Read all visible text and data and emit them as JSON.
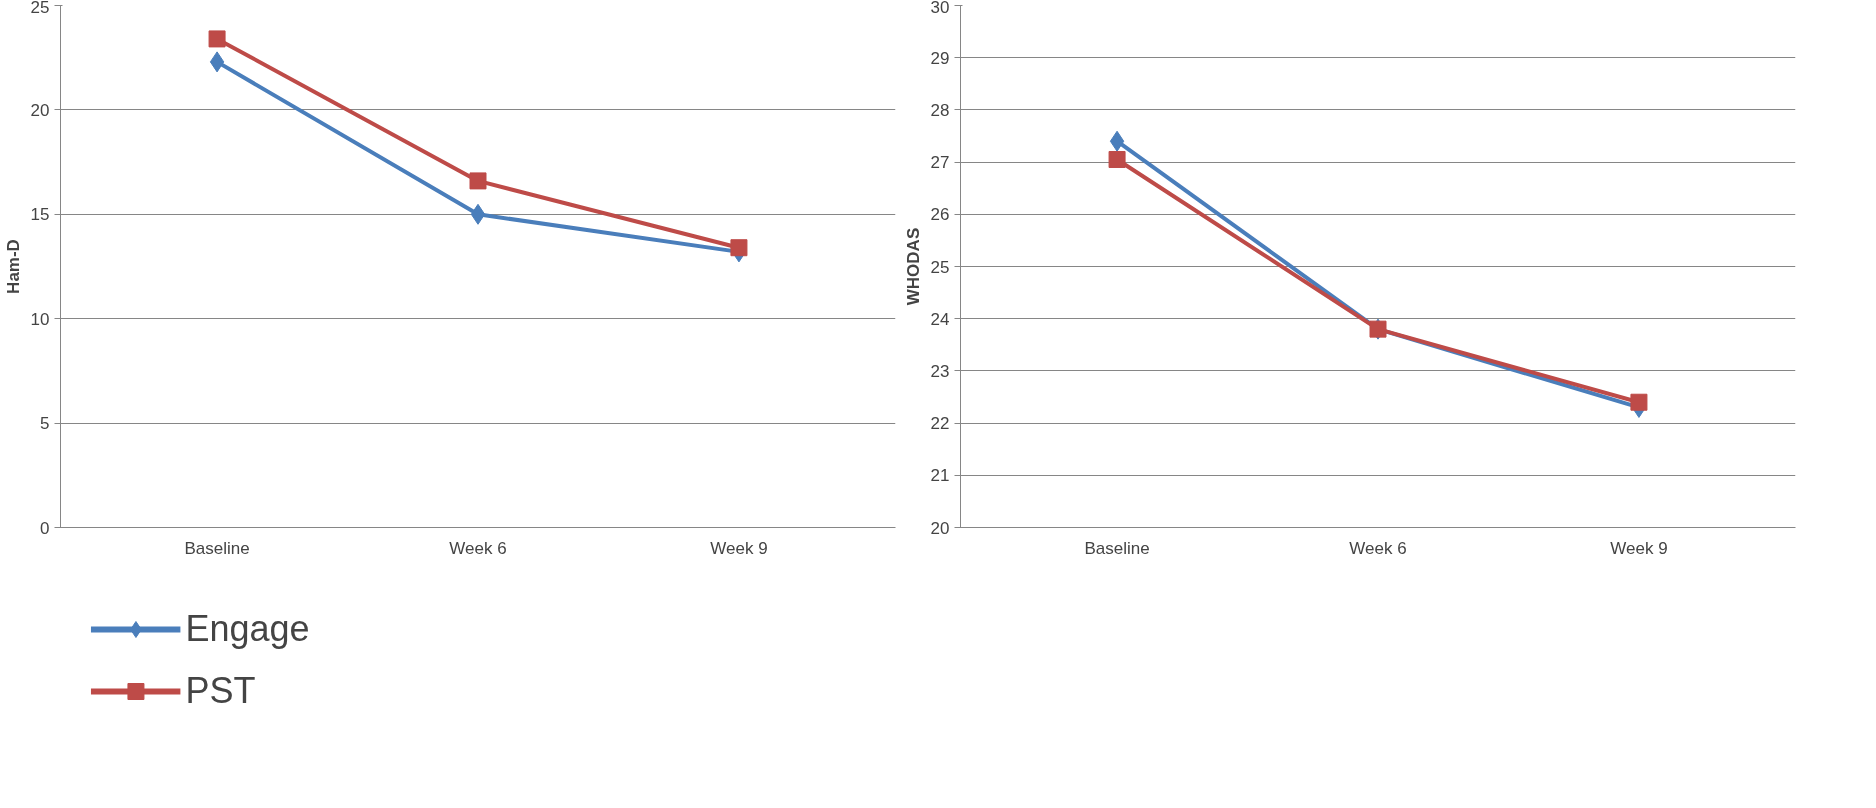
{
  "chart_data": [
    {
      "type": "line",
      "ylabel": "Ham-D",
      "categories": [
        "Baseline",
        "Week 6",
        "Week 9"
      ],
      "ylim": [
        0,
        25
      ],
      "yticks": [
        0,
        5,
        10,
        15,
        20,
        25
      ],
      "grid": "y",
      "legend": "bottom",
      "series": [
        {
          "name": "Engage",
          "color": "#4a7ebb",
          "marker": "diamond",
          "values": [
            22.3,
            15.0,
            13.2
          ]
        },
        {
          "name": "PST",
          "color": "#be4b48",
          "marker": "square",
          "values": [
            23.4,
            16.6,
            13.4
          ]
        }
      ]
    },
    {
      "type": "line",
      "ylabel": "WHODAS",
      "categories": [
        "Baseline",
        "Week 6",
        "Week 9"
      ],
      "ylim": [
        20,
        30
      ],
      "yticks": [
        20,
        21,
        22,
        23,
        24,
        25,
        26,
        27,
        28,
        29,
        30
      ],
      "grid": "y",
      "series": [
        {
          "color": "#4a7ebb",
          "marker": "diamond",
          "values": [
            27.4,
            23.8,
            22.3
          ]
        },
        {
          "color": "#be4b48",
          "marker": "square",
          "values": [
            27.05,
            23.8,
            22.4
          ]
        }
      ]
    }
  ]
}
